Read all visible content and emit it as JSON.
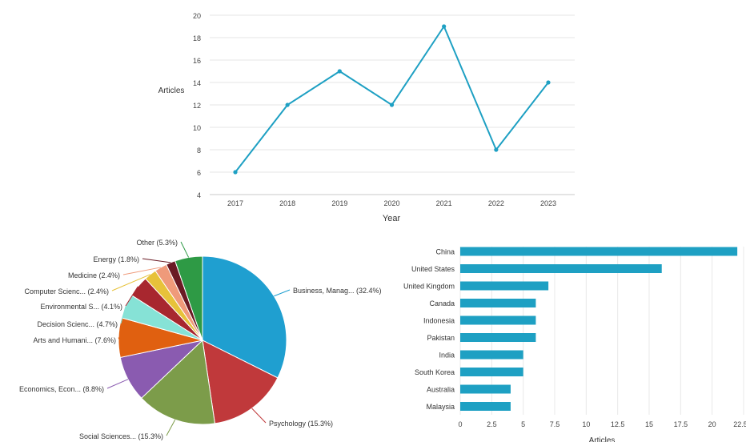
{
  "chart_data": [
    {
      "type": "line",
      "title": "",
      "xlabel": "Year",
      "ylabel": "Articles",
      "x": [
        "2017",
        "2018",
        "2019",
        "2020",
        "2021",
        "2022",
        "2023"
      ],
      "series": [
        {
          "name": "",
          "values": [
            6,
            12,
            15,
            12,
            19,
            8,
            14
          ]
        }
      ],
      "ylim": [
        4,
        20
      ],
      "yticks": [
        "4",
        "6",
        "8",
        "10",
        "12",
        "14",
        "16",
        "18",
        "20"
      ],
      "grid": true,
      "color": "#1ea0c3"
    },
    {
      "type": "pie",
      "title": "",
      "slices": [
        {
          "label": "Business, Manag... (32.4%)",
          "value": 32.4,
          "color": "#1f9fd0"
        },
        {
          "label": "Psychology (15.3%)",
          "value": 15.3,
          "color": "#c0393b"
        },
        {
          "label": "Social Sciences... (15.3%)",
          "value": 15.3,
          "color": "#7c9c4a"
        },
        {
          "label": "Economics, Econ... (8.8%)",
          "value": 8.8,
          "color": "#8a5bb0"
        },
        {
          "label": "Arts and Humani... (7.6%)",
          "value": 7.6,
          "color": "#e06010"
        },
        {
          "label": "Decision Scienc... (4.7%)",
          "value": 4.7,
          "color": "#86e2d6"
        },
        {
          "label": "Environmental S... (4.1%)",
          "value": 4.1,
          "color": "#a8272f"
        },
        {
          "label": "Computer Scienc... (2.4%)",
          "value": 2.4,
          "color": "#e7c23a"
        },
        {
          "label": "Medicine (2.4%)",
          "value": 2.4,
          "color": "#ef9a7a"
        },
        {
          "label": "Energy (1.8%)",
          "value": 1.8,
          "color": "#6a1a24"
        },
        {
          "label": "Other (5.3%)",
          "value": 5.3,
          "color": "#2e9a45"
        }
      ]
    },
    {
      "type": "bar",
      "orientation": "horizontal",
      "title": "",
      "xlabel": "Articles",
      "categories": [
        "China",
        "United States",
        "United Kingdom",
        "Canada",
        "Indonesia",
        "Pakistan",
        "India",
        "South Korea",
        "Australia",
        "Malaysia"
      ],
      "values": [
        22,
        16,
        7,
        6,
        6,
        6,
        5,
        5,
        4,
        4
      ],
      "xlim": [
        0,
        22.5
      ],
      "xticks": [
        "0",
        "2.5",
        "5",
        "7.5",
        "10",
        "12.5",
        "15",
        "17.5",
        "20",
        "22.5"
      ],
      "grid": true,
      "color": "#1ea0c3"
    }
  ]
}
